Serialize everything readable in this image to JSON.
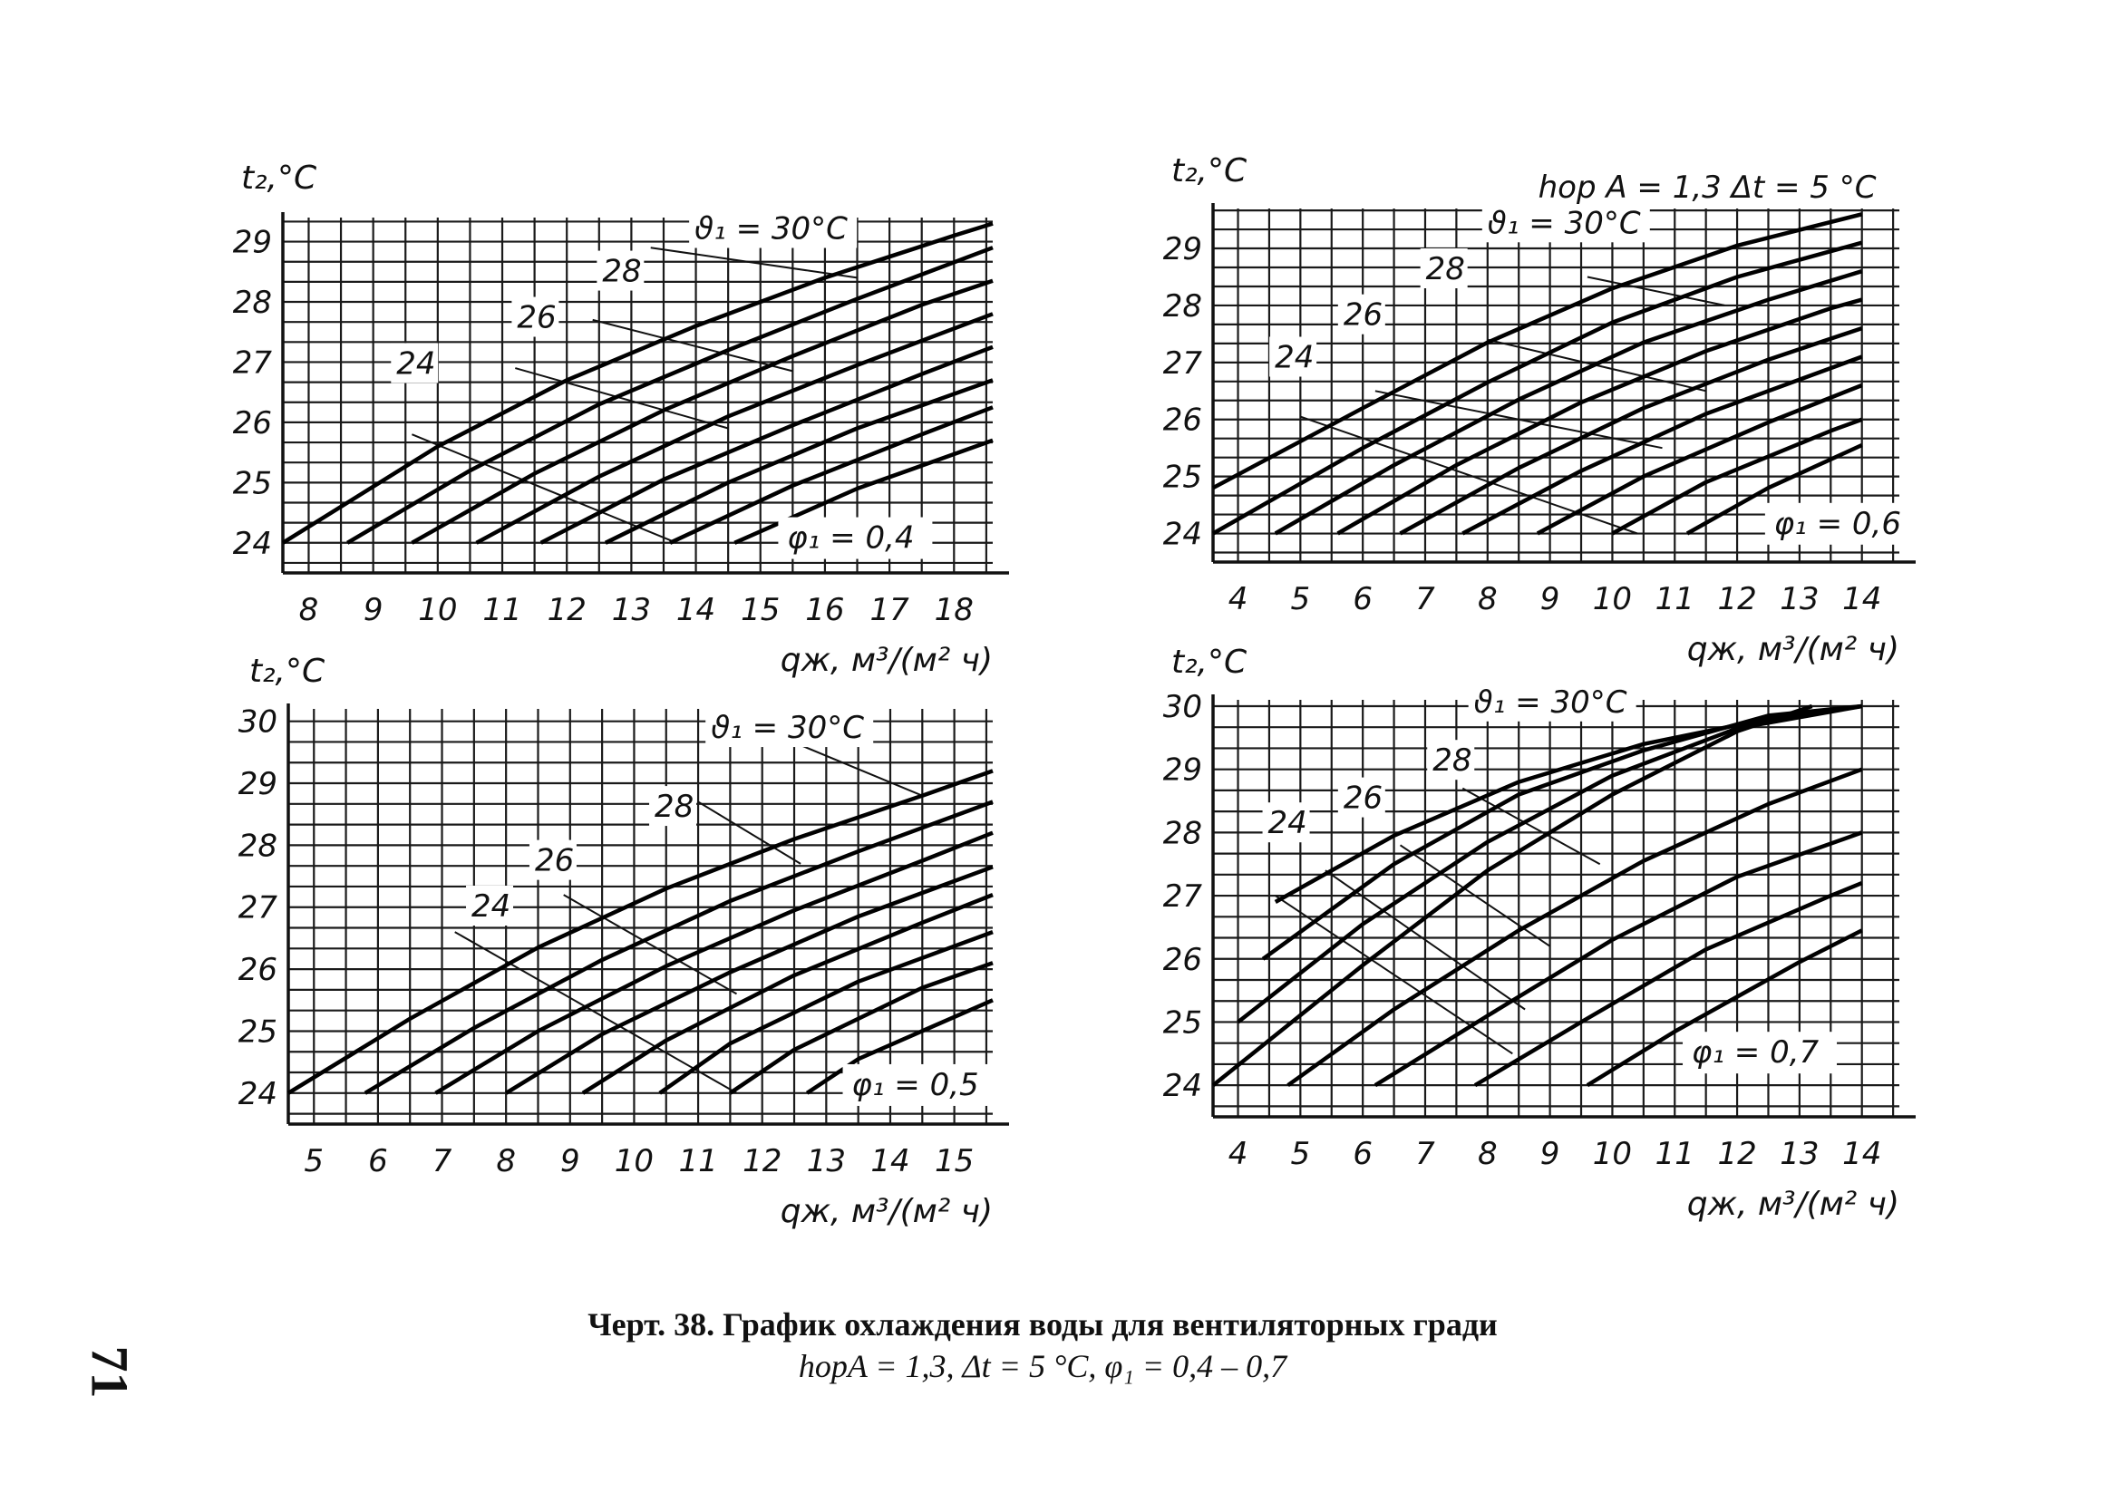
{
  "caption": {
    "line1": "Черт. 38. График охлаждения воды для вентиляторных гради",
    "line2": "hорA = 1,3, Δt = 5 °С, φ₁ = 0,4 – 0,7"
  },
  "page_number": "71",
  "chart_data": [
    {
      "type": "line",
      "ylabel": "t₂,°C",
      "xlabel": "qж, м³/(м² ч)",
      "xticks": [
        "8",
        "9",
        "10",
        "11",
        "12",
        "13",
        "14",
        "15",
        "16",
        "17",
        "18"
      ],
      "yticks": [
        "24",
        "25",
        "26",
        "27",
        "28",
        "29"
      ],
      "xlim": [
        7.6,
        18.6
      ],
      "ylim": [
        23.5,
        29.4
      ],
      "header": "",
      "param_label": "φ₁ = 0,4",
      "series": [
        {
          "name": "ϑ₁ = 30°C",
          "x": [
            7.6,
            10.0,
            12.0,
            14.0,
            16.0,
            17.0,
            18.0,
            18.6
          ],
          "y": [
            24.0,
            25.6,
            26.7,
            27.6,
            28.4,
            28.75,
            29.1,
            29.3
          ]
        },
        {
          "x": [
            8.6,
            10.5,
            12.5,
            14.5,
            16.5,
            18.6
          ],
          "y": [
            24.0,
            25.2,
            26.3,
            27.2,
            28.05,
            28.9
          ]
        },
        {
          "name": "28",
          "x": [
            9.6,
            11.5,
            13.5,
            15.5,
            17.5,
            18.6
          ],
          "y": [
            24.0,
            25.15,
            26.2,
            27.1,
            27.95,
            28.35
          ]
        },
        {
          "x": [
            10.6,
            12.5,
            14.5,
            16.5,
            18.6
          ],
          "y": [
            24.0,
            25.1,
            26.1,
            26.95,
            27.8
          ]
        },
        {
          "name": "26",
          "x": [
            11.6,
            13.5,
            15.5,
            17.5,
            18.6
          ],
          "y": [
            24.0,
            25.05,
            25.95,
            26.8,
            27.25
          ]
        },
        {
          "x": [
            12.6,
            14.5,
            16.5,
            18.6
          ],
          "y": [
            24.0,
            25.0,
            25.9,
            26.7
          ]
        },
        {
          "name": "24",
          "x": [
            13.6,
            15.5,
            17.5,
            18.6
          ],
          "y": [
            24.0,
            24.95,
            25.8,
            26.25
          ]
        },
        {
          "x": [
            14.6,
            16.5,
            18.6
          ],
          "y": [
            24.0,
            24.9,
            25.7
          ]
        }
      ],
      "guides": [
        {
          "x": [
            13.3,
            16.5
          ],
          "y": [
            28.9,
            28.4
          ]
        },
        {
          "x": [
            12.4,
            15.5
          ],
          "y": [
            27.7,
            26.85
          ]
        },
        {
          "x": [
            11.2,
            14.5
          ],
          "y": [
            26.9,
            25.9
          ]
        },
        {
          "x": [
            9.6,
            13.7
          ],
          "y": [
            25.8,
            24.0
          ]
        }
      ]
    },
    {
      "type": "line",
      "ylabel": "t₂,°C",
      "xlabel": "qж, м³/(м² ч)",
      "xticks": [
        "4",
        "5",
        "6",
        "7",
        "8",
        "9",
        "10",
        "11",
        "12",
        "13",
        "14"
      ],
      "yticks": [
        "24",
        "25",
        "26",
        "27",
        "28",
        "29"
      ],
      "xlim": [
        3.6,
        14.6
      ],
      "ylim": [
        23.5,
        29.7
      ],
      "header": "hор A = 1,3   Δt = 5 °C",
      "param_label": "φ₁ = 0,6",
      "series": [
        {
          "name": "ϑ₁ = 30°C",
          "x": [
            3.6,
            6.0,
            8.0,
            10.0,
            12.0,
            14.0
          ],
          "y": [
            24.8,
            26.2,
            27.35,
            28.3,
            29.05,
            29.6
          ]
        },
        {
          "x": [
            3.6,
            6.0,
            8.0,
            10.0,
            12.0,
            14.0
          ],
          "y": [
            24.0,
            25.5,
            26.65,
            27.7,
            28.5,
            29.1
          ]
        },
        {
          "name": "28",
          "x": [
            4.6,
            6.5,
            8.5,
            10.5,
            12.5,
            14.0
          ],
          "y": [
            24.0,
            25.2,
            26.35,
            27.35,
            28.1,
            28.6
          ]
        },
        {
          "x": [
            5.6,
            7.5,
            9.5,
            11.5,
            13.5,
            14.0
          ],
          "y": [
            24.0,
            25.2,
            26.3,
            27.2,
            27.95,
            28.1
          ]
        },
        {
          "name": "26",
          "x": [
            6.6,
            8.5,
            10.5,
            12.5,
            14.0
          ],
          "y": [
            24.0,
            25.15,
            26.2,
            27.05,
            27.6
          ]
        },
        {
          "name": "24",
          "x": [
            7.6,
            9.5,
            11.5,
            13.5,
            14.0
          ],
          "y": [
            24.0,
            25.1,
            26.1,
            26.9,
            27.1
          ]
        },
        {
          "x": [
            8.8,
            10.5,
            12.5,
            14.0
          ],
          "y": [
            24.0,
            25.0,
            25.95,
            26.6
          ]
        },
        {
          "x": [
            10.0,
            11.5,
            13.5,
            14.0
          ],
          "y": [
            24.0,
            24.9,
            25.8,
            26.0
          ]
        },
        {
          "x": [
            11.2,
            12.5,
            14.0
          ],
          "y": [
            24.0,
            24.8,
            25.55
          ]
        }
      ],
      "guides": [
        {
          "x": [
            9.6,
            11.8
          ],
          "y": [
            28.5,
            28.0
          ]
        },
        {
          "x": [
            8.0,
            11.5
          ],
          "y": [
            27.4,
            26.5
          ]
        },
        {
          "x": [
            6.2,
            10.8
          ],
          "y": [
            26.5,
            25.5
          ]
        },
        {
          "x": [
            5.0,
            10.4
          ],
          "y": [
            26.05,
            24.0
          ]
        }
      ]
    },
    {
      "type": "line",
      "ylabel": "t₂,°C",
      "xlabel": "qж, м³/(м² ч)",
      "xticks": [
        "5",
        "6",
        "7",
        "8",
        "9",
        "10",
        "11",
        "12",
        "13",
        "14",
        "15"
      ],
      "yticks": [
        "24",
        "25",
        "26",
        "27",
        "28",
        "29",
        "30"
      ],
      "xlim": [
        4.6,
        15.6
      ],
      "ylim": [
        23.5,
        30.2
      ],
      "header": "",
      "param_label": "φ₁ = 0,5",
      "series": [
        {
          "name": "ϑ₁ = 30°C",
          "x": [
            4.6,
            6.5,
            8.5,
            10.5,
            12.5,
            14.5,
            15.6
          ],
          "y": [
            24.0,
            25.2,
            26.35,
            27.3,
            28.1,
            28.8,
            29.2
          ]
        },
        {
          "x": [
            5.8,
            7.5,
            9.5,
            11.5,
            13.5,
            15.6
          ],
          "y": [
            24.0,
            25.05,
            26.15,
            27.1,
            27.9,
            28.7
          ]
        },
        {
          "name": "28",
          "x": [
            6.9,
            8.5,
            10.5,
            12.5,
            14.5,
            15.6
          ],
          "y": [
            24.0,
            25.0,
            26.05,
            26.95,
            27.75,
            28.2
          ]
        },
        {
          "x": [
            8.0,
            9.5,
            11.5,
            13.5,
            15.6
          ],
          "y": [
            24.0,
            24.95,
            25.95,
            26.85,
            27.65
          ]
        },
        {
          "name": "26",
          "x": [
            9.2,
            10.5,
            12.5,
            14.5,
            15.6
          ],
          "y": [
            24.0,
            24.85,
            25.9,
            26.75,
            27.2
          ]
        },
        {
          "name": "24",
          "x": [
            10.4,
            11.5,
            13.5,
            15.6
          ],
          "y": [
            24.0,
            24.8,
            25.8,
            26.6
          ]
        },
        {
          "x": [
            11.5,
            12.5,
            14.5,
            15.6
          ],
          "y": [
            24.0,
            24.7,
            25.7,
            26.1
          ]
        },
        {
          "x": [
            12.7,
            13.5,
            15.6
          ],
          "y": [
            24.0,
            24.55,
            25.5
          ]
        }
      ],
      "guides": [
        {
          "x": [
            12.4,
            14.5
          ],
          "y": [
            29.7,
            28.8
          ]
        },
        {
          "x": [
            11.0,
            12.6
          ],
          "y": [
            28.7,
            27.7
          ]
        },
        {
          "x": [
            8.9,
            11.6
          ],
          "y": [
            27.2,
            25.6
          ]
        },
        {
          "x": [
            7.2,
            11.6
          ],
          "y": [
            26.6,
            24.0
          ]
        }
      ]
    },
    {
      "type": "line",
      "ylabel": "t₂,°C",
      "xlabel": "qж, м³/(м² ч)",
      "xticks": [
        "4",
        "5",
        "6",
        "7",
        "8",
        "9",
        "10",
        "11",
        "12",
        "13",
        "14"
      ],
      "yticks": [
        "24",
        "25",
        "26",
        "27",
        "28",
        "29",
        "30"
      ],
      "xlim": [
        3.6,
        14.6
      ],
      "ylim": [
        23.5,
        30.1
      ],
      "header": "",
      "param_label": "φ₁ = 0,7",
      "series": [
        {
          "name": "ϑ₁ = 30°C",
          "x": [
            3.6,
            6.0,
            8.0,
            10.0,
            12.0,
            13.2
          ],
          "y": [
            24.0,
            25.9,
            27.4,
            28.6,
            29.6,
            30.0
          ]
        },
        {
          "x": [
            4.0,
            6.0,
            8.0,
            10.0,
            12.0,
            14.0
          ],
          "y": [
            25.0,
            26.55,
            27.85,
            28.9,
            29.65,
            30.0
          ]
        },
        {
          "name": "28",
          "x": [
            4.4,
            6.5,
            8.5,
            10.5,
            12.5,
            14.0
          ],
          "y": [
            26.0,
            27.5,
            28.6,
            29.3,
            29.85,
            30.0
          ]
        },
        {
          "name": "26",
          "x": [
            4.6,
            6.5,
            8.5,
            10.5,
            12.5,
            14.0
          ],
          "y": [
            26.9,
            27.95,
            28.8,
            29.4,
            29.8,
            30.0
          ]
        },
        {
          "name": "24",
          "x": [
            4.8,
            6.5,
            8.5,
            10.5,
            12.5,
            14.0
          ],
          "y": [
            24.0,
            25.2,
            26.45,
            27.55,
            28.45,
            29.0
          ]
        },
        {
          "x": [
            6.2,
            8.0,
            10.0,
            12.0,
            14.0
          ],
          "y": [
            24.0,
            25.1,
            26.3,
            27.3,
            28.0
          ]
        },
        {
          "x": [
            7.8,
            9.5,
            11.5,
            13.5,
            14.0
          ],
          "y": [
            24.0,
            25.0,
            26.15,
            27.0,
            27.2
          ]
        },
        {
          "x": [
            9.6,
            11.0,
            13.0,
            14.0
          ],
          "y": [
            24.0,
            24.85,
            25.95,
            26.45
          ]
        }
      ],
      "guides": [
        {
          "x": [
            7.6,
            9.8
          ],
          "y": [
            28.7,
            27.5
          ]
        },
        {
          "x": [
            6.6,
            9.0
          ],
          "y": [
            27.8,
            26.2
          ]
        },
        {
          "x": [
            5.4,
            8.6
          ],
          "y": [
            27.4,
            25.2
          ]
        },
        {
          "x": [
            4.6,
            8.4
          ],
          "y": [
            27.0,
            24.5
          ]
        }
      ]
    }
  ]
}
